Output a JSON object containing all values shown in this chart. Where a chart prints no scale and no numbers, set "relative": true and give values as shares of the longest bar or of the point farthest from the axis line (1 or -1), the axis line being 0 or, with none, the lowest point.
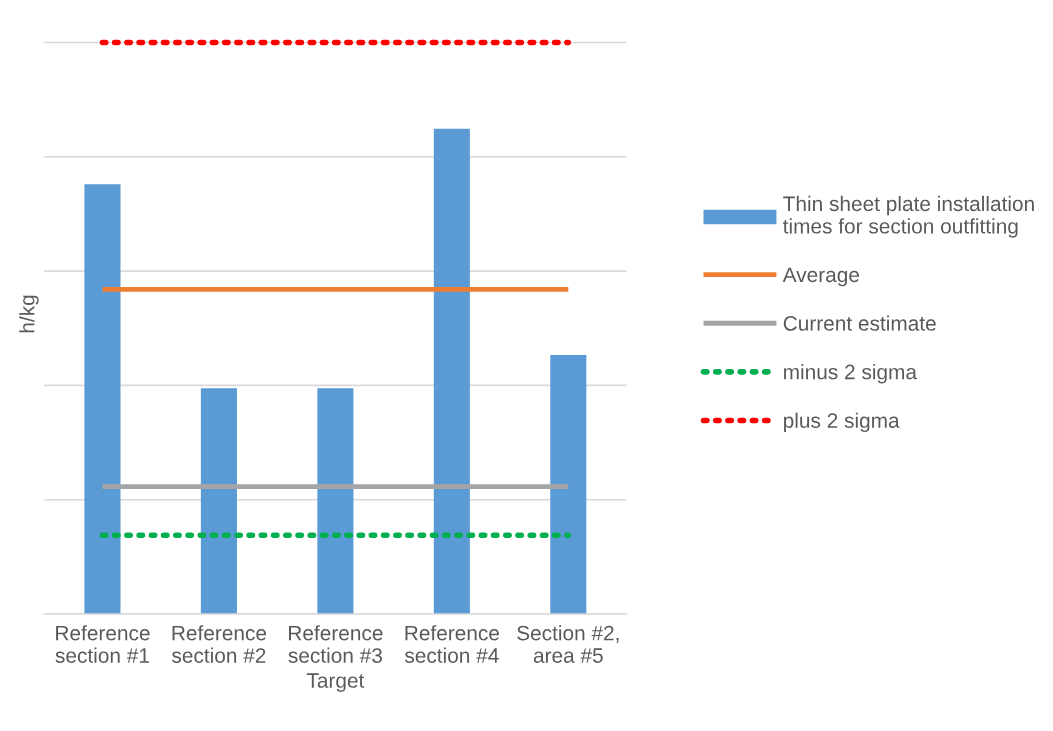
{
  "chart_data": {
    "type": "bar",
    "relative": true,
    "xlabel": "Target",
    "ylabel": "h/kg",
    "categories": [
      "Reference\nsection #1",
      "Reference\nsection #2",
      "Reference\nsection #3",
      "Reference\nsection #4",
      "Section #2,\narea #5"
    ],
    "series": [
      {
        "name": "Thin sheet plate installation\ntimes for section outfitting",
        "color": "#5b9bd5",
        "values": [
          0.752,
          0.395,
          0.395,
          0.849,
          0.453
        ]
      },
      {
        "name": "Average",
        "type": "line",
        "color": "#ed7d31",
        "line_style": "solid",
        "values": [
          0.568,
          0.568,
          0.568,
          0.568,
          0.568
        ]
      },
      {
        "name": "Current estimate",
        "type": "line",
        "color": "#a5a5a5",
        "line_style": "solid",
        "values": [
          0.223,
          0.223,
          0.223,
          0.223,
          0.223
        ]
      },
      {
        "name": "minus 2 sigma",
        "type": "line",
        "color": "#00b050",
        "line_style": "dotted",
        "values": [
          0.138,
          0.138,
          0.138,
          0.138,
          0.138
        ]
      },
      {
        "name": "plus 2 sigma",
        "type": "line",
        "color": "#ff0000",
        "line_style": "dotted",
        "values": [
          1,
          1,
          1,
          1,
          1
        ]
      }
    ],
    "grid": "y",
    "legend": "right",
    "tick_labels": "x"
  }
}
